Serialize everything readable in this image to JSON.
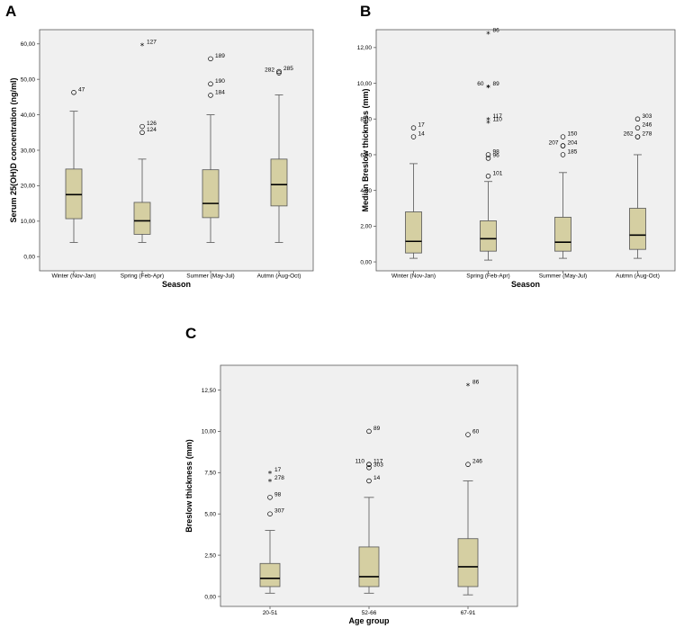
{
  "chart_data": [
    {
      "panel": "A",
      "type": "box",
      "title": "",
      "xlabel": "Season",
      "ylabel": "Serum 25(OH)D concentration (ng/ml)",
      "ylim": [
        -4,
        64
      ],
      "yticks": [
        0,
        10,
        20,
        30,
        40,
        50,
        60
      ],
      "ytick_labels": [
        "0,00",
        "10,00",
        "20,00",
        "30,00",
        "40,00",
        "50,00",
        "60,00"
      ],
      "categories": [
        "Winter (Nov-Jan)",
        "Spring (Feb-Apr)",
        "Summer (May-Jul)",
        "Autmn (Aug-Oct)"
      ],
      "boxes": [
        {
          "min": 4,
          "q1": 10.7,
          "median": 17.5,
          "q3": 24.7,
          "max": 41
        },
        {
          "min": 4,
          "q1": 6.3,
          "median": 10.1,
          "q3": 15.3,
          "max": 27.5
        },
        {
          "min": 4,
          "q1": 11,
          "median": 15,
          "q3": 24.5,
          "max": 40
        },
        {
          "min": 4,
          "q1": 14.3,
          "median": 20.3,
          "q3": 27.5,
          "max": 45.6
        }
      ],
      "outliers": [
        {
          "cat": 0,
          "value": 46.3,
          "label": "47",
          "marker": "circle"
        },
        {
          "cat": 1,
          "value": 59.7,
          "label": "127",
          "marker": "star"
        },
        {
          "cat": 1,
          "value": 36.7,
          "label": "126",
          "marker": "circle"
        },
        {
          "cat": 1,
          "value": 35,
          "label": "124",
          "marker": "circle"
        },
        {
          "cat": 2,
          "value": 55.8,
          "label": "189",
          "marker": "circle"
        },
        {
          "cat": 2,
          "value": 48.7,
          "label": "190",
          "marker": "circle"
        },
        {
          "cat": 2,
          "value": 45.5,
          "label": "184",
          "marker": "circle"
        },
        {
          "cat": 3,
          "value": 52.2,
          "label": "285",
          "marker": "circle"
        },
        {
          "cat": 3,
          "value": 51.8,
          "label": "282",
          "marker": "circle"
        }
      ]
    },
    {
      "panel": "B",
      "type": "box",
      "title": "",
      "xlabel": "Season",
      "ylabel": "Median Breslow thickness (mm)",
      "ylim": [
        -0.5,
        13
      ],
      "yticks": [
        0,
        2,
        4,
        6,
        8,
        10,
        12
      ],
      "ytick_labels": [
        "0,00",
        "2,00",
        "4,00",
        "6,00",
        "8,00",
        "10,00",
        "12,00"
      ],
      "categories": [
        "Winter (Nov-Jan)",
        "Spring (Feb-Apr)",
        "Summer (May-Jul)",
        "Autmn (Aug-Oct)"
      ],
      "boxes": [
        {
          "min": 0.2,
          "q1": 0.5,
          "median": 1.15,
          "q3": 2.8,
          "max": 5.5
        },
        {
          "min": 0.1,
          "q1": 0.6,
          "median": 1.3,
          "q3": 2.3,
          "max": 4.5
        },
        {
          "min": 0.2,
          "q1": 0.6,
          "median": 1.1,
          "q3": 2.5,
          "max": 5.0
        },
        {
          "min": 0.2,
          "q1": 0.7,
          "median": 1.5,
          "q3": 3.0,
          "max": 6.0
        }
      ],
      "outliers": [
        {
          "cat": 0,
          "value": 7.5,
          "label": "17",
          "marker": "circle"
        },
        {
          "cat": 0,
          "value": 7.0,
          "label": "14",
          "marker": "circle"
        },
        {
          "cat": 1,
          "value": 12.8,
          "label": "86",
          "marker": "star"
        },
        {
          "cat": 1,
          "value": 9.8,
          "label": "89",
          "marker": "star"
        },
        {
          "cat": 1,
          "value": 9.8,
          "label": "60",
          "marker": "star"
        },
        {
          "cat": 1,
          "value": 8.0,
          "label": "117",
          "marker": "star"
        },
        {
          "cat": 1,
          "value": 7.8,
          "label": "110",
          "marker": "star"
        },
        {
          "cat": 1,
          "value": 6.0,
          "label": "98",
          "marker": "circle"
        },
        {
          "cat": 1,
          "value": 5.8,
          "label": "96",
          "marker": "circle"
        },
        {
          "cat": 1,
          "value": 4.8,
          "label": "101",
          "marker": "circle"
        },
        {
          "cat": 2,
          "value": 7.0,
          "label": "150",
          "marker": "circle"
        },
        {
          "cat": 2,
          "value": 6.5,
          "label": "204",
          "marker": "circle"
        },
        {
          "cat": 2,
          "value": 6.5,
          "label": "207",
          "marker": "circle"
        },
        {
          "cat": 2,
          "value": 6.0,
          "label": "185",
          "marker": "circle"
        },
        {
          "cat": 3,
          "value": 8.0,
          "label": "303",
          "marker": "circle"
        },
        {
          "cat": 3,
          "value": 7.5,
          "label": "246",
          "marker": "circle"
        },
        {
          "cat": 3,
          "value": 7.0,
          "label": "278",
          "marker": "circle"
        },
        {
          "cat": 3,
          "value": 7.0,
          "label": "262",
          "marker": "circle"
        }
      ]
    },
    {
      "panel": "C",
      "type": "box",
      "title": "",
      "xlabel": "Age group",
      "ylabel": "Breslow thickness (mm)",
      "ylim": [
        -0.6,
        14
      ],
      "yticks": [
        0,
        2.5,
        5,
        7.5,
        10,
        12.5
      ],
      "ytick_labels": [
        "0,00",
        "2,50",
        "5,00",
        "7,50",
        "10,00",
        "12,50"
      ],
      "categories": [
        "20-51",
        "52-66",
        "67-91"
      ],
      "boxes": [
        {
          "min": 0.2,
          "q1": 0.6,
          "median": 1.1,
          "q3": 2.0,
          "max": 4.0
        },
        {
          "min": 0.2,
          "q1": 0.6,
          "median": 1.2,
          "q3": 3.0,
          "max": 6.0
        },
        {
          "min": 0.1,
          "q1": 0.6,
          "median": 1.8,
          "q3": 3.5,
          "max": 7.0
        }
      ],
      "outliers": [
        {
          "cat": 0,
          "value": 7.5,
          "label": "17",
          "marker": "star"
        },
        {
          "cat": 0,
          "value": 7.0,
          "label": "278",
          "marker": "star"
        },
        {
          "cat": 0,
          "value": 6.0,
          "label": "98",
          "marker": "circle"
        },
        {
          "cat": 0,
          "value": 5.0,
          "label": "307",
          "marker": "circle"
        },
        {
          "cat": 1,
          "value": 10.0,
          "label": "89",
          "marker": "circle"
        },
        {
          "cat": 1,
          "value": 8.0,
          "label": "117",
          "marker": "circle"
        },
        {
          "cat": 1,
          "value": 8.0,
          "label": "110",
          "marker": "circle"
        },
        {
          "cat": 1,
          "value": 7.8,
          "label": "303",
          "marker": "circle"
        },
        {
          "cat": 1,
          "value": 7.0,
          "label": "14",
          "marker": "circle"
        },
        {
          "cat": 2,
          "value": 12.8,
          "label": "86",
          "marker": "star"
        },
        {
          "cat": 2,
          "value": 9.8,
          "label": "60",
          "marker": "circle"
        },
        {
          "cat": 2,
          "value": 8.0,
          "label": "246",
          "marker": "circle"
        }
      ]
    }
  ],
  "colors": {
    "box_fill": "#d5cfa2",
    "plot_bg": "#f0f0f0",
    "frame": "#5a5a5a",
    "whisker": "#555555",
    "median": "#000000"
  }
}
